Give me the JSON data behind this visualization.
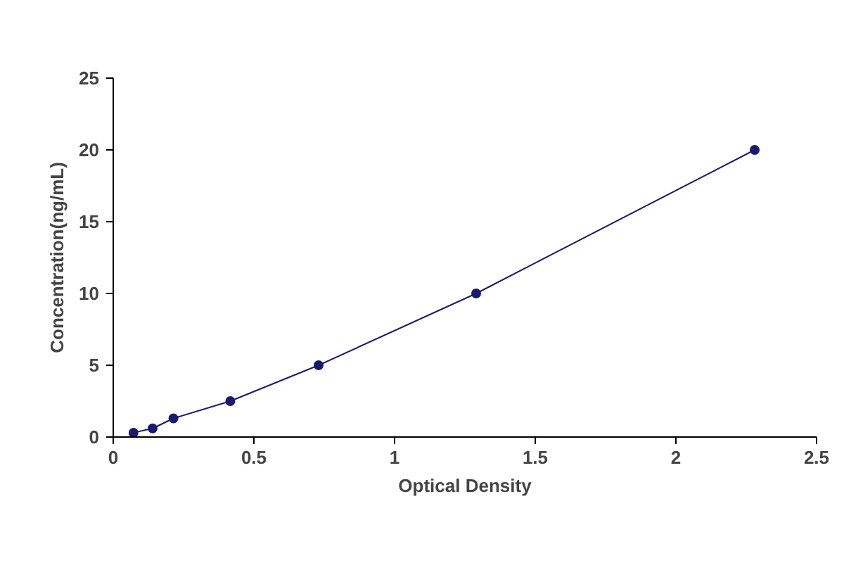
{
  "chart_data": {
    "type": "line",
    "xlabel": "Optical Density",
    "ylabel": "Concentration(ng/mL)",
    "x": [
      0.072,
      0.14,
      0.214,
      0.416,
      0.73,
      1.29,
      2.28
    ],
    "series": [
      {
        "color": "#1a1a6e",
        "values": [
          0.3,
          0.6,
          1.3,
          2.5,
          5,
          10,
          20
        ]
      }
    ],
    "xlim": [
      0,
      2.5
    ],
    "xticks": [
      0,
      0.5,
      1,
      1.5,
      2,
      2.5
    ],
    "ylim": [
      0,
      25
    ],
    "yticks": [
      0,
      5,
      10,
      15,
      20,
      25
    ],
    "grid": false,
    "marker": "circle",
    "line_style": "solid"
  }
}
